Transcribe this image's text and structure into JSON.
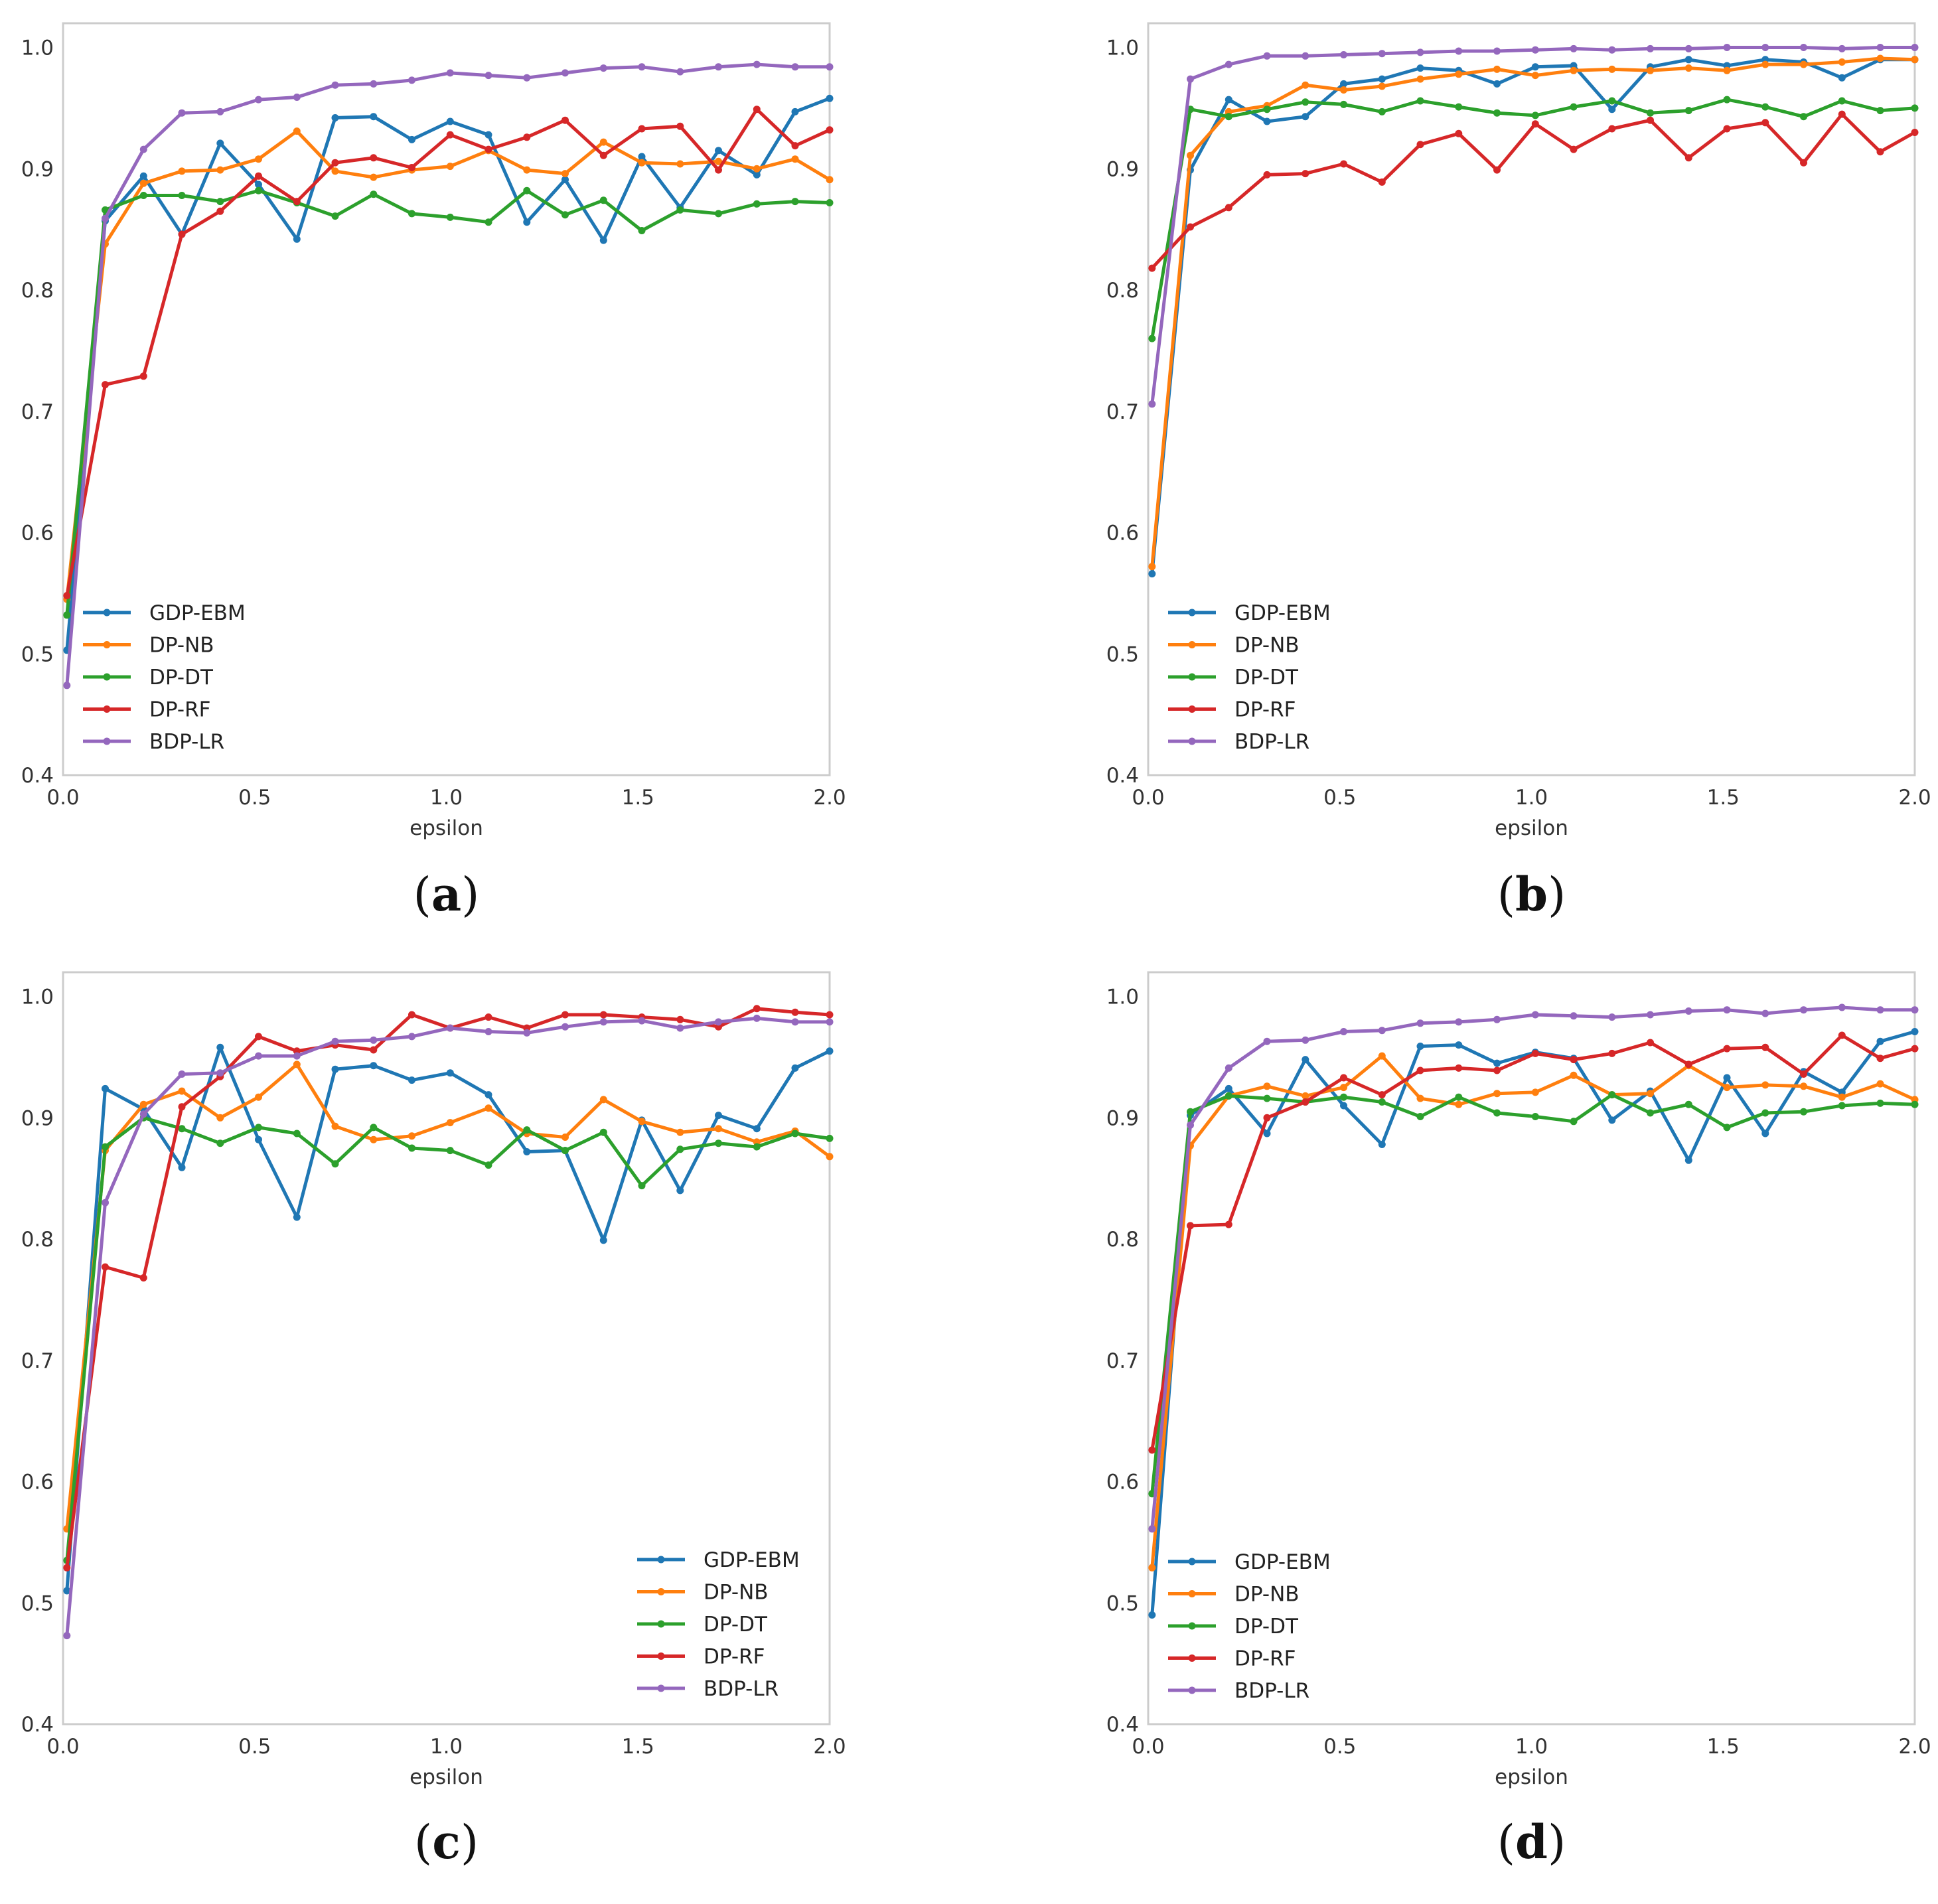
{
  "colors": {
    "GDP-EBM": "#1f77b4",
    "DP-NB": "#ff7f0e",
    "DP-DT": "#2ca02c",
    "DP-RF": "#d62728",
    "BDP-LR": "#9467bd"
  },
  "chart_data": [
    {
      "type": "line",
      "caption_open": "(",
      "caption_letter": "a",
      "caption_close": ")",
      "xlabel": "epsilon",
      "ylabel": "",
      "xlim": [
        0.0,
        2.0
      ],
      "ylim": [
        0.4,
        1.02
      ],
      "xticks": [
        "0.0",
        "0.5",
        "1.0",
        "1.5",
        "2.0"
      ],
      "yticks": [
        "0.4",
        "0.5",
        "0.6",
        "0.7",
        "0.8",
        "0.9",
        "1.0"
      ],
      "legend_position": "lower-left",
      "x": [
        0.01,
        0.11,
        0.21,
        0.31,
        0.41,
        0.51,
        0.61,
        0.71,
        0.81,
        0.91,
        1.01,
        1.11,
        1.21,
        1.31,
        1.41,
        1.51,
        1.61,
        1.71,
        1.81,
        1.91,
        2.0
      ],
      "series": [
        {
          "name": "GDP-EBM",
          "values": [
            0.503,
            0.857,
            0.894,
            0.846,
            0.921,
            0.887,
            0.842,
            0.942,
            0.943,
            0.924,
            0.939,
            0.928,
            0.856,
            0.891,
            0.841,
            0.91,
            0.868,
            0.915,
            0.895,
            0.947,
            0.958
          ]
        },
        {
          "name": "DP-NB",
          "values": [
            0.545,
            0.838,
            0.888,
            0.898,
            0.899,
            0.908,
            0.931,
            0.898,
            0.893,
            0.899,
            0.902,
            0.915,
            0.899,
            0.896,
            0.922,
            0.905,
            0.904,
            0.906,
            0.9,
            0.908,
            0.891
          ]
        },
        {
          "name": "DP-DT",
          "values": [
            0.532,
            0.866,
            0.878,
            0.878,
            0.873,
            0.882,
            0.872,
            0.861,
            0.879,
            0.863,
            0.86,
            0.856,
            0.882,
            0.862,
            0.874,
            0.849,
            0.866,
            0.863,
            0.871,
            0.873,
            0.872
          ]
        },
        {
          "name": "DP-RF",
          "values": [
            0.548,
            0.722,
            0.729,
            0.846,
            0.865,
            0.894,
            0.873,
            0.905,
            0.909,
            0.901,
            0.928,
            0.916,
            0.926,
            0.94,
            0.911,
            0.933,
            0.935,
            0.899,
            0.949,
            0.919,
            0.932
          ]
        },
        {
          "name": "BDP-LR",
          "values": [
            0.474,
            0.859,
            0.916,
            0.946,
            0.947,
            0.957,
            0.959,
            0.969,
            0.97,
            0.973,
            0.979,
            0.977,
            0.975,
            0.979,
            0.983,
            0.984,
            0.98,
            0.984,
            0.986,
            0.984,
            0.984
          ]
        }
      ]
    },
    {
      "type": "line",
      "caption_open": "(",
      "caption_letter": "b",
      "caption_close": ")",
      "xlabel": "epsilon",
      "ylabel": "",
      "xlim": [
        0.0,
        2.0
      ],
      "ylim": [
        0.4,
        1.02
      ],
      "xticks": [
        "0.0",
        "0.5",
        "1.0",
        "1.5",
        "2.0"
      ],
      "yticks": [
        "0.4",
        "0.5",
        "0.6",
        "0.7",
        "0.8",
        "0.9",
        "1.0"
      ],
      "legend_position": "lower-left",
      "x": [
        0.01,
        0.11,
        0.21,
        0.31,
        0.41,
        0.51,
        0.61,
        0.71,
        0.81,
        0.91,
        1.01,
        1.11,
        1.21,
        1.31,
        1.41,
        1.51,
        1.61,
        1.71,
        1.81,
        1.91,
        2.0
      ],
      "series": [
        {
          "name": "GDP-EBM",
          "values": [
            0.566,
            0.899,
            0.957,
            0.939,
            0.943,
            0.97,
            0.974,
            0.983,
            0.981,
            0.97,
            0.984,
            0.985,
            0.949,
            0.984,
            0.99,
            0.985,
            0.99,
            0.988,
            0.975,
            0.99,
            0.99
          ]
        },
        {
          "name": "DP-NB",
          "values": [
            0.572,
            0.911,
            0.947,
            0.952,
            0.969,
            0.965,
            0.968,
            0.974,
            0.978,
            0.982,
            0.977,
            0.981,
            0.982,
            0.981,
            0.983,
            0.981,
            0.986,
            0.986,
            0.988,
            0.991,
            0.99
          ]
        },
        {
          "name": "DP-DT",
          "values": [
            0.76,
            0.949,
            0.943,
            0.949,
            0.955,
            0.953,
            0.947,
            0.956,
            0.951,
            0.946,
            0.944,
            0.951,
            0.956,
            0.946,
            0.948,
            0.957,
            0.951,
            0.943,
            0.956,
            0.948,
            0.95
          ]
        },
        {
          "name": "DP-RF",
          "values": [
            0.818,
            0.852,
            0.868,
            0.895,
            0.896,
            0.904,
            0.889,
            0.92,
            0.929,
            0.899,
            0.937,
            0.916,
            0.933,
            0.94,
            0.909,
            0.933,
            0.938,
            0.905,
            0.945,
            0.914,
            0.93
          ]
        },
        {
          "name": "BDP-LR",
          "values": [
            0.706,
            0.974,
            0.986,
            0.993,
            0.993,
            0.994,
            0.995,
            0.996,
            0.997,
            0.997,
            0.998,
            0.999,
            0.998,
            0.999,
            0.999,
            1.0,
            1.0,
            1.0,
            0.999,
            1.0,
            1.0
          ]
        }
      ]
    },
    {
      "type": "line",
      "caption_open": "(",
      "caption_letter": "c",
      "caption_close": ")",
      "xlabel": "epsilon",
      "ylabel": "",
      "xlim": [
        0.0,
        2.0
      ],
      "ylim": [
        0.4,
        1.02
      ],
      "xticks": [
        "0.0",
        "0.5",
        "1.0",
        "1.5",
        "2.0"
      ],
      "yticks": [
        "0.4",
        "0.5",
        "0.6",
        "0.7",
        "0.8",
        "0.9",
        "1.0"
      ],
      "legend_position": "lower-right",
      "x": [
        0.01,
        0.11,
        0.21,
        0.31,
        0.41,
        0.51,
        0.61,
        0.71,
        0.81,
        0.91,
        1.01,
        1.11,
        1.21,
        1.31,
        1.41,
        1.51,
        1.61,
        1.71,
        1.81,
        1.91,
        2.0
      ],
      "series": [
        {
          "name": "GDP-EBM",
          "values": [
            0.51,
            0.924,
            0.907,
            0.859,
            0.958,
            0.882,
            0.818,
            0.94,
            0.943,
            0.931,
            0.937,
            0.919,
            0.872,
            0.873,
            0.799,
            0.898,
            0.84,
            0.902,
            0.891,
            0.941,
            0.955
          ]
        },
        {
          "name": "DP-NB",
          "values": [
            0.561,
            0.873,
            0.911,
            0.922,
            0.9,
            0.917,
            0.944,
            0.893,
            0.882,
            0.885,
            0.896,
            0.908,
            0.887,
            0.884,
            0.915,
            0.897,
            0.888,
            0.891,
            0.88,
            0.889,
            0.868
          ]
        },
        {
          "name": "DP-DT",
          "values": [
            0.535,
            0.876,
            0.9,
            0.891,
            0.879,
            0.892,
            0.887,
            0.862,
            0.892,
            0.875,
            0.873,
            0.861,
            0.89,
            0.873,
            0.888,
            0.844,
            0.874,
            0.879,
            0.876,
            0.887,
            0.883
          ]
        },
        {
          "name": "DP-RF",
          "values": [
            0.529,
            0.777,
            0.768,
            0.909,
            0.934,
            0.967,
            0.955,
            0.96,
            0.956,
            0.985,
            0.974,
            0.983,
            0.974,
            0.985,
            0.985,
            0.983,
            0.981,
            0.975,
            0.99,
            0.987,
            0.985
          ]
        },
        {
          "name": "BDP-LR",
          "values": [
            0.473,
            0.83,
            0.903,
            0.936,
            0.937,
            0.951,
            0.951,
            0.963,
            0.964,
            0.967,
            0.974,
            0.971,
            0.97,
            0.975,
            0.979,
            0.98,
            0.974,
            0.979,
            0.982,
            0.979,
            0.979
          ]
        }
      ]
    },
    {
      "type": "line",
      "caption_open": "(",
      "caption_letter": "d",
      "caption_close": ")",
      "xlabel": "epsilon",
      "ylabel": "",
      "xlim": [
        0.0,
        2.0
      ],
      "ylim": [
        0.4,
        1.02
      ],
      "xticks": [
        "0.0",
        "0.5",
        "1.0",
        "1.5",
        "2.0"
      ],
      "yticks": [
        "0.4",
        "0.5",
        "0.6",
        "0.7",
        "0.8",
        "0.9",
        "1.0"
      ],
      "legend_position": "lower-left",
      "x": [
        0.01,
        0.11,
        0.21,
        0.31,
        0.41,
        0.51,
        0.61,
        0.71,
        0.81,
        0.91,
        1.01,
        1.11,
        1.21,
        1.31,
        1.41,
        1.51,
        1.61,
        1.71,
        1.81,
        1.91,
        2.0
      ],
      "series": [
        {
          "name": "GDP-EBM",
          "values": [
            0.49,
            0.902,
            0.924,
            0.887,
            0.948,
            0.91,
            0.878,
            0.959,
            0.96,
            0.945,
            0.954,
            0.949,
            0.898,
            0.922,
            0.865,
            0.933,
            0.887,
            0.938,
            0.921,
            0.963,
            0.971
          ]
        },
        {
          "name": "DP-NB",
          "values": [
            0.529,
            0.877,
            0.918,
            0.926,
            0.918,
            0.925,
            0.951,
            0.916,
            0.911,
            0.92,
            0.921,
            0.935,
            0.919,
            0.92,
            0.943,
            0.925,
            0.927,
            0.926,
            0.917,
            0.928,
            0.915
          ]
        },
        {
          "name": "DP-DT",
          "values": [
            0.59,
            0.905,
            0.918,
            0.916,
            0.913,
            0.917,
            0.913,
            0.901,
            0.917,
            0.904,
            0.901,
            0.897,
            0.919,
            0.904,
            0.911,
            0.892,
            0.904,
            0.905,
            0.91,
            0.912,
            0.911
          ]
        },
        {
          "name": "DP-RF",
          "values": [
            0.626,
            0.811,
            0.812,
            0.9,
            0.913,
            0.933,
            0.919,
            0.939,
            0.941,
            0.939,
            0.953,
            0.948,
            0.953,
            0.962,
            0.944,
            0.957,
            0.958,
            0.936,
            0.968,
            0.949,
            0.957
          ]
        },
        {
          "name": "BDP-LR",
          "values": [
            0.561,
            0.894,
            0.941,
            0.963,
            0.964,
            0.971,
            0.972,
            0.978,
            0.979,
            0.981,
            0.985,
            0.984,
            0.983,
            0.985,
            0.988,
            0.989,
            0.986,
            0.989,
            0.991,
            0.989,
            0.989
          ]
        }
      ]
    }
  ]
}
